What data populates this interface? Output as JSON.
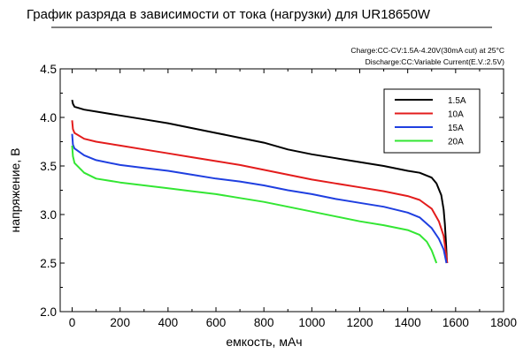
{
  "chart_data": {
    "type": "line",
    "title": "График разряда в зависимости от тока (нагрузки) для UR18650W",
    "annotations": [
      "Charge:CC-CV:1.5A-4.20V(30mA cut) at 25°C",
      "Discharge:CC:Variable Current(E.V.:2.5V)"
    ],
    "xlabel": "емкость, мАч",
    "ylabel": "напряжение, В",
    "xlim": [
      -50,
      1800
    ],
    "ylim": [
      2.0,
      4.5
    ],
    "x_ticks": [
      0,
      200,
      400,
      600,
      800,
      1000,
      1200,
      1400,
      1600,
      1800
    ],
    "y_ticks": [
      "2.0",
      "2.5",
      "3.0",
      "3.5",
      "4.0",
      "4.5"
    ],
    "grid": false,
    "legend_position": "top-right",
    "series": [
      {
        "name": "1.5A",
        "color": "#000000",
        "points": [
          [
            0,
            4.18
          ],
          [
            3,
            4.14
          ],
          [
            10,
            4.11
          ],
          [
            50,
            4.08
          ],
          [
            100,
            4.06
          ],
          [
            200,
            4.02
          ],
          [
            300,
            3.98
          ],
          [
            400,
            3.94
          ],
          [
            500,
            3.89
          ],
          [
            600,
            3.84
          ],
          [
            700,
            3.79
          ],
          [
            800,
            3.74
          ],
          [
            900,
            3.67
          ],
          [
            1000,
            3.62
          ],
          [
            1100,
            3.58
          ],
          [
            1200,
            3.54
          ],
          [
            1300,
            3.5
          ],
          [
            1400,
            3.45
          ],
          [
            1450,
            3.43
          ],
          [
            1500,
            3.38
          ],
          [
            1520,
            3.32
          ],
          [
            1540,
            3.2
          ],
          [
            1550,
            3.05
          ],
          [
            1555,
            2.9
          ],
          [
            1560,
            2.7
          ],
          [
            1564,
            2.5
          ]
        ]
      },
      {
        "name": "10A",
        "color": "#e31c1c",
        "points": [
          [
            0,
            3.97
          ],
          [
            3,
            3.88
          ],
          [
            10,
            3.84
          ],
          [
            50,
            3.78
          ],
          [
            100,
            3.75
          ],
          [
            200,
            3.71
          ],
          [
            300,
            3.67
          ],
          [
            400,
            3.63
          ],
          [
            500,
            3.59
          ],
          [
            600,
            3.55
          ],
          [
            700,
            3.51
          ],
          [
            800,
            3.46
          ],
          [
            900,
            3.41
          ],
          [
            1000,
            3.36
          ],
          [
            1100,
            3.32
          ],
          [
            1200,
            3.28
          ],
          [
            1300,
            3.24
          ],
          [
            1400,
            3.19
          ],
          [
            1450,
            3.15
          ],
          [
            1500,
            3.06
          ],
          [
            1530,
            2.93
          ],
          [
            1550,
            2.78
          ],
          [
            1565,
            2.5
          ]
        ]
      },
      {
        "name": "15A",
        "color": "#1f3fe0",
        "points": [
          [
            0,
            3.83
          ],
          [
            3,
            3.72
          ],
          [
            10,
            3.68
          ],
          [
            50,
            3.61
          ],
          [
            100,
            3.56
          ],
          [
            200,
            3.51
          ],
          [
            300,
            3.48
          ],
          [
            400,
            3.45
          ],
          [
            500,
            3.41
          ],
          [
            600,
            3.37
          ],
          [
            700,
            3.34
          ],
          [
            800,
            3.3
          ],
          [
            900,
            3.25
          ],
          [
            1000,
            3.21
          ],
          [
            1100,
            3.16
          ],
          [
            1200,
            3.12
          ],
          [
            1300,
            3.08
          ],
          [
            1400,
            3.02
          ],
          [
            1450,
            2.97
          ],
          [
            1500,
            2.86
          ],
          [
            1530,
            2.75
          ],
          [
            1550,
            2.64
          ],
          [
            1562,
            2.5
          ]
        ]
      },
      {
        "name": "20A",
        "color": "#33e633",
        "points": [
          [
            0,
            3.71
          ],
          [
            3,
            3.6
          ],
          [
            10,
            3.53
          ],
          [
            50,
            3.43
          ],
          [
            100,
            3.37
          ],
          [
            200,
            3.33
          ],
          [
            300,
            3.3
          ],
          [
            400,
            3.27
          ],
          [
            500,
            3.24
          ],
          [
            600,
            3.21
          ],
          [
            700,
            3.17
          ],
          [
            800,
            3.13
          ],
          [
            900,
            3.08
          ],
          [
            1000,
            3.03
          ],
          [
            1100,
            2.98
          ],
          [
            1200,
            2.93
          ],
          [
            1300,
            2.89
          ],
          [
            1400,
            2.84
          ],
          [
            1450,
            2.79
          ],
          [
            1480,
            2.72
          ],
          [
            1500,
            2.63
          ],
          [
            1520,
            2.5
          ]
        ]
      }
    ]
  }
}
